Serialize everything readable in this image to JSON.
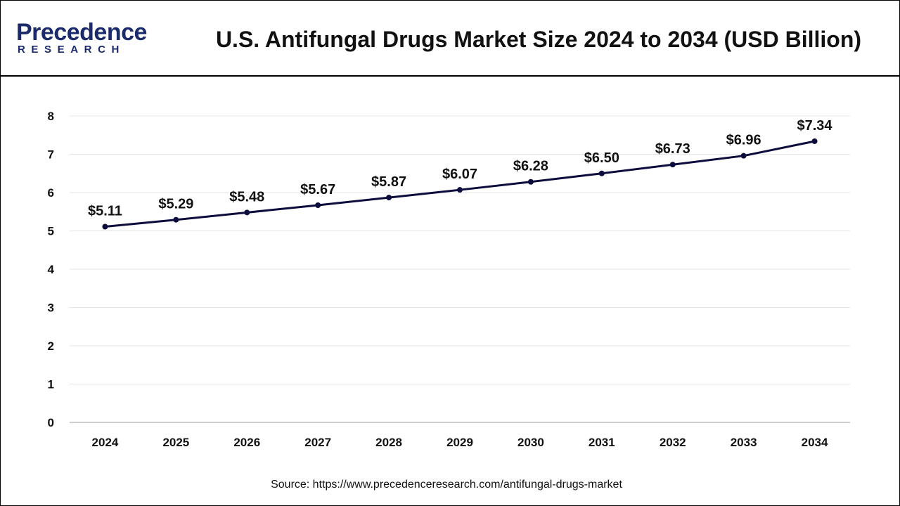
{
  "logo": {
    "top": "Precedence",
    "bottom": "RESEARCH"
  },
  "chart_data": {
    "type": "line",
    "title": "U.S. Antifungal Drugs Market Size 2024 to 2034 (USD Billion)",
    "categories": [
      "2024",
      "2025",
      "2026",
      "2027",
      "2028",
      "2029",
      "2030",
      "2031",
      "2032",
      "2033",
      "2034"
    ],
    "values": [
      5.11,
      5.29,
      5.48,
      5.67,
      5.87,
      6.07,
      6.28,
      6.5,
      6.73,
      6.96,
      7.34
    ],
    "data_labels": [
      "$5.11",
      "$5.29",
      "$5.48",
      "$5.67",
      "$5.87",
      "$6.07",
      "$6.28",
      "$6.50",
      "$6.73",
      "$6.96",
      "$7.34"
    ],
    "yticks": [
      0,
      1,
      2,
      3,
      4,
      5,
      6,
      7,
      8
    ],
    "ylim": [
      0,
      8
    ],
    "xlabel": "",
    "ylabel": "",
    "grid": true,
    "legend": "none",
    "line_color": "#0d0d3d"
  },
  "source": "Source: https://www.precedenceresearch.com/antifungal-drugs-market"
}
